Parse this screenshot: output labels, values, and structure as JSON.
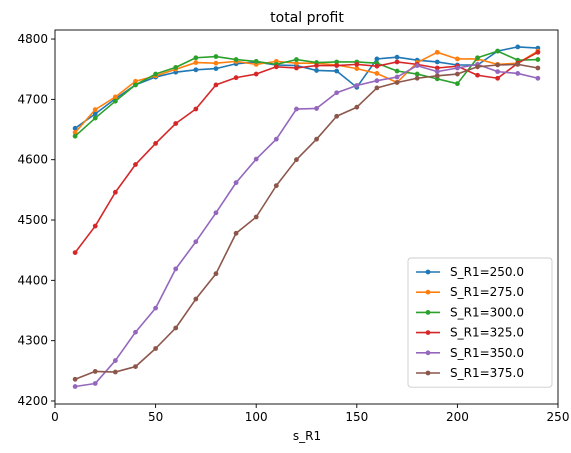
{
  "chart_data": {
    "type": "line",
    "title": "total profit",
    "xlabel": "s_R1",
    "ylabel": "",
    "xlim": [
      0,
      250
    ],
    "ylim": [
      4195,
      4815
    ],
    "xticks": [
      0,
      50,
      100,
      150,
      200,
      250
    ],
    "yticks": [
      4200,
      4300,
      4400,
      4500,
      4600,
      4700,
      4800
    ],
    "grid": false,
    "legend_position": "lower-right",
    "x": [
      10,
      20,
      30,
      40,
      50,
      60,
      70,
      80,
      90,
      100,
      110,
      120,
      130,
      140,
      150,
      160,
      170,
      180,
      190,
      200,
      210,
      220,
      230,
      240
    ],
    "series": [
      {
        "name": "S_R1=250.0",
        "color": "#1f77b4",
        "values": [
          4652,
          4676,
          4701,
          4724,
          4737,
          4745,
          4749,
          4751,
          4759,
          4762,
          4757,
          4756,
          4748,
          4747,
          4720,
          4767,
          4770,
          4765,
          4762,
          4757,
          4757,
          4780,
          4787,
          4785
        ]
      },
      {
        "name": "S_R1=275.0",
        "color": "#ff7f0e",
        "values": [
          4645,
          4683,
          4704,
          4730,
          4739,
          4750,
          4761,
          4760,
          4763,
          4758,
          4763,
          4760,
          4760,
          4757,
          4751,
          4743,
          4728,
          4761,
          4778,
          4767,
          4767,
          4758,
          4760,
          4780
        ]
      },
      {
        "name": "S_R1=300.0",
        "color": "#2ca02c",
        "values": [
          4639,
          4669,
          4697,
          4724,
          4742,
          4753,
          4769,
          4771,
          4766,
          4763,
          4758,
          4766,
          4761,
          4762,
          4762,
          4760,
          4747,
          4742,
          4734,
          4726,
          4769,
          4780,
          4765,
          4766
        ]
      },
      {
        "name": "S_R1=325.0",
        "color": "#d62728",
        "values": [
          4446,
          4490,
          4546,
          4592,
          4627,
          4660,
          4684,
          4724,
          4736,
          4742,
          4754,
          4752,
          4756,
          4756,
          4758,
          4755,
          4762,
          4758,
          4752,
          4755,
          4740,
          4735,
          4760,
          4778
        ]
      },
      {
        "name": "S_R1=350.0",
        "color": "#9467bd",
        "values": [
          4224,
          4229,
          4267,
          4314,
          4354,
          4419,
          4464,
          4512,
          4562,
          4601,
          4634,
          4684,
          4685,
          4711,
          4723,
          4731,
          4737,
          4756,
          4746,
          4752,
          4758,
          4746,
          4743,
          4735
        ]
      },
      {
        "name": "S_R1=375.0",
        "color": "#8c564b",
        "values": [
          4236,
          4249,
          4248,
          4257,
          4287,
          4321,
          4369,
          4411,
          4478,
          4505,
          4557,
          4600,
          4634,
          4672,
          4687,
          4719,
          4728,
          4735,
          4739,
          4742,
          4754,
          4757,
          4758,
          4752
        ]
      }
    ]
  }
}
